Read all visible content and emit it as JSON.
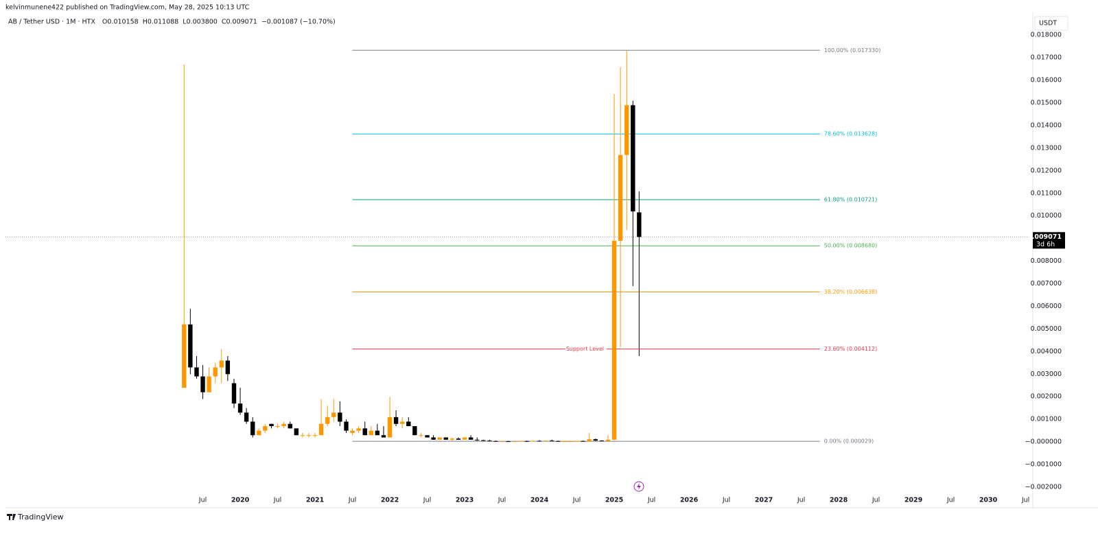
{
  "page": {
    "published": "kelvinmunene422 published on TradingView.com, May 28, 2025 10:13 UTC",
    "symbol": "AB / Tether USD · 1M · HTX",
    "open": "O0.010158",
    "high": "H0.011088",
    "low": "L0.003800",
    "close": "C0.009071",
    "change": "−0.001087 (−10.70%)",
    "currency": "USDT",
    "logo": "TradingView"
  },
  "chart_data": {
    "type": "candlestick",
    "up_color": "#ff9800",
    "down_color": "#000000",
    "xlim": [
      2016.862,
      2030.55
    ],
    "ylim": [
      -0.00285,
      0.01834
    ],
    "xticks": [
      {
        "value": 2019.5,
        "label": "Jul"
      },
      2020,
      {
        "value": 2020.5,
        "label": "Jul"
      },
      2021,
      {
        "value": 2021.5,
        "label": "Jul"
      },
      2022,
      {
        "value": 2022.5,
        "label": "Jul"
      },
      2023,
      {
        "value": 2023.5,
        "label": "Jul"
      },
      2024,
      {
        "value": 2024.5,
        "label": "Jul"
      },
      2025,
      {
        "value": 2025.5,
        "label": "Jul"
      },
      2026,
      {
        "value": 2026.5,
        "label": "Jul"
      },
      2027,
      {
        "value": 2027.5,
        "label": "Jul"
      },
      2028,
      {
        "value": 2028.5,
        "label": "Jul"
      },
      2029,
      {
        "value": 2029.5,
        "label": "Jul"
      },
      2030,
      {
        "value": 2030.5,
        "label": "Jul"
      }
    ],
    "yticks": [
      {
        "value": 0.018,
        "label": "0.018000"
      },
      {
        "value": 0.017,
        "label": "0.017000"
      },
      {
        "value": 0.016,
        "label": "0.016000"
      },
      {
        "value": 0.015,
        "label": "0.015000"
      },
      {
        "value": 0.014,
        "label": "0.014000"
      },
      {
        "value": 0.013,
        "label": "0.013000"
      },
      {
        "value": 0.012,
        "label": "0.012000"
      },
      {
        "value": 0.011,
        "label": "0.011000"
      },
      {
        "value": 0.01,
        "label": "0.010000"
      },
      {
        "value": 0.008,
        "label": "0.008000"
      },
      {
        "value": 0.007,
        "label": "0.007000"
      },
      {
        "value": 0.006,
        "label": "0.006000"
      },
      {
        "value": 0.005,
        "label": "0.005000"
      },
      {
        "value": 0.004,
        "label": "0.004000"
      },
      {
        "value": 0.003,
        "label": "0.003000"
      },
      {
        "value": 0.002,
        "label": "0.002000"
      },
      {
        "value": 0.001,
        "label": "0.001000"
      },
      {
        "value": 0,
        "label": "−0.000000"
      },
      {
        "value": -0.001,
        "label": "−0.001000"
      },
      {
        "value": -0.002,
        "label": "−0.002000"
      }
    ],
    "x": [
      2019.25,
      2019.333,
      2019.417,
      2019.5,
      2019.583,
      2019.667,
      2019.75,
      2019.833,
      2019.917,
      2020,
      2020.083,
      2020.167,
      2020.25,
      2020.333,
      2020.417,
      2020.5,
      2020.583,
      2020.667,
      2020.75,
      2020.833,
      2020.917,
      2021,
      2021.083,
      2021.167,
      2021.25,
      2021.333,
      2021.417,
      2021.5,
      2021.583,
      2021.667,
      2021.75,
      2021.833,
      2021.917,
      2022,
      2022.083,
      2022.167,
      2022.25,
      2022.333,
      2022.417,
      2022.5,
      2022.583,
      2022.667,
      2022.75,
      2022.833,
      2022.917,
      2023,
      2023.083,
      2023.167,
      2023.25,
      2023.333,
      2023.417,
      2023.5,
      2023.583,
      2023.667,
      2023.75,
      2023.833,
      2023.917,
      2024,
      2024.083,
      2024.167,
      2024.25,
      2024.333,
      2024.417,
      2024.5,
      2024.583,
      2024.667,
      2024.75,
      2024.833,
      2024.917,
      2025,
      2025.083,
      2025.167,
      2025.25,
      2025.333
    ],
    "open": [
      0.0024,
      0.0052,
      0.0033,
      0.0029,
      0.0022,
      0.0029,
      0.0033,
      0.0036,
      0.0026,
      0.0017,
      0.0013,
      0.0009,
      0.0003,
      0.0005,
      0.0008,
      0.0007,
      0.0007,
      0.0008,
      0.0006,
      0.0003,
      0.0003,
      0.0003,
      0.0003,
      0.0008,
      0.0011,
      0.0013,
      0.0009,
      0.0004,
      0.0005,
      0.0006,
      0.0003,
      0.0005,
      0.0003,
      0.0002,
      0.0011,
      0.0008,
      0.0009,
      0.0007,
      0.0003,
      0.0003,
      0.0002,
      0.0001,
      0.0002,
      0.0001,
      0.00015,
      0.0001,
      0.0002,
      0.0001,
      8e-05,
      6e-05,
      4e-05,
      3e-05,
      3e-05,
      2e-05,
      3e-05,
      4e-05,
      3e-05,
      5e-05,
      4e-05,
      6e-05,
      4e-05,
      3e-05,
      3e-05,
      3e-05,
      4e-05,
      3e-05,
      0.00012,
      6e-05,
      4e-05,
      0.0001,
      0.0089,
      0.0127,
      0.0149,
      0.010158
    ],
    "high": [
      0.0167,
      0.0059,
      0.0038,
      0.0034,
      0.0033,
      0.0035,
      0.0041,
      0.0038,
      0.0028,
      0.0024,
      0.0015,
      0.0011,
      0.0006,
      0.0008,
      0.0008,
      0.0008,
      0.0009,
      0.0009,
      0.0006,
      0.0004,
      0.0004,
      0.0004,
      0.0019,
      0.0016,
      0.0019,
      0.0018,
      0.001,
      0.0006,
      0.0007,
      0.0009,
      0.0007,
      0.0008,
      0.0007,
      0.002,
      0.0014,
      0.0011,
      0.0011,
      0.0007,
      0.0004,
      0.0003,
      0.0003,
      0.0002,
      0.0002,
      0.0002,
      0.0002,
      0.0002,
      0.0003,
      0.0002,
      0.0001,
      0.0001,
      6e-05,
      5e-05,
      5e-05,
      4e-05,
      5e-05,
      6e-05,
      8e-05,
      8e-05,
      7e-05,
      0.0001,
      6e-05,
      5e-05,
      4e-05,
      5e-05,
      6e-05,
      0.0004,
      0.00015,
      8e-05,
      0.0003,
      0.0154,
      0.0166,
      0.0173,
      0.0151,
      0.011088
    ],
    "low": [
      0.0024,
      0.003,
      0.0028,
      0.0019,
      0.0022,
      0.0026,
      0.0026,
      0.0027,
      0.0015,
      0.0012,
      0.0008,
      0.0002,
      0.0003,
      0.0004,
      0.0006,
      0.0006,
      0.0006,
      0.0006,
      0.0003,
      0.0002,
      0.0002,
      0.0002,
      0.0003,
      0.0007,
      0.0009,
      0.0007,
      0.0004,
      0.0003,
      0.0004,
      0.0003,
      0.0003,
      0.0003,
      0.0002,
      0.0002,
      0.0007,
      0.0006,
      0.0007,
      0.0003,
      0.0002,
      0.0002,
      0.0001,
      0.0001,
      0.0001,
      5e-05,
      0.0001,
      0.0001,
      0.0001,
      5e-05,
      5e-05,
      3e-05,
      2e-05,
      2e-05,
      2e-05,
      1e-05,
      2e-05,
      2e-05,
      2e-05,
      3e-05,
      3e-05,
      3e-05,
      2e-05,
      2e-05,
      2e-05,
      2e-05,
      2e-05,
      3e-05,
      5e-05,
      3e-05,
      3e-05,
      0.0001,
      0.0042,
      0.0094,
      0.0069,
      0.0038
    ],
    "close": [
      0.0052,
      0.0033,
      0.0029,
      0.0022,
      0.0029,
      0.0033,
      0.0036,
      0.003,
      0.0017,
      0.0013,
      0.0009,
      0.0003,
      0.0005,
      0.0007,
      0.0007,
      0.0007,
      0.0008,
      0.0006,
      0.0003,
      0.0003,
      0.0003,
      0.0003,
      0.0008,
      0.0011,
      0.0013,
      0.0009,
      0.0005,
      0.0005,
      0.0006,
      0.0003,
      0.0005,
      0.0003,
      0.0002,
      0.0011,
      0.0008,
      0.0009,
      0.0007,
      0.0003,
      0.0003,
      0.0002,
      0.0001,
      0.0002,
      0.0001,
      0.00015,
      0.0001,
      0.0002,
      0.0001,
      8e-05,
      6e-05,
      4e-05,
      3e-05,
      3e-05,
      2e-05,
      3e-05,
      4e-05,
      3e-05,
      5e-05,
      4e-05,
      6e-05,
      4e-05,
      3e-05,
      3e-05,
      3e-05,
      4e-05,
      3e-05,
      0.00012,
      6e-05,
      4e-05,
      0.0001,
      0.0089,
      0.0127,
      0.0149,
      0.0102,
      0.009071
    ],
    "fib_x": [
      2021.5,
      2027.75
    ],
    "fib_levels": [
      {
        "value": 0.01733,
        "label": "100.00% (0.017330)",
        "color": "#787b86"
      },
      {
        "value": 0.013628,
        "label": "78.60% (0.013628)",
        "color": "#00bcd4"
      },
      {
        "value": 0.010721,
        "label": "61.80% (0.010721)",
        "color": "#089981"
      },
      {
        "value": 0.00868,
        "label": "50.00% (0.008680)",
        "color": "#4caf50"
      },
      {
        "value": 0.006638,
        "label": "38.20% (0.006638)",
        "color": "#ff9800"
      },
      {
        "value": 0.004112,
        "label": "23.60% (0.004112)",
        "color": "#f23645"
      },
      {
        "value": 2.9e-05,
        "label": "0.00% (0.000029)",
        "color": "#787b86"
      }
    ],
    "annotation": {
      "text": "Support Level",
      "level": 5
    },
    "last_price": {
      "value": 0.009071,
      "label": "0.009071",
      "countdown": "3d 6h"
    }
  }
}
